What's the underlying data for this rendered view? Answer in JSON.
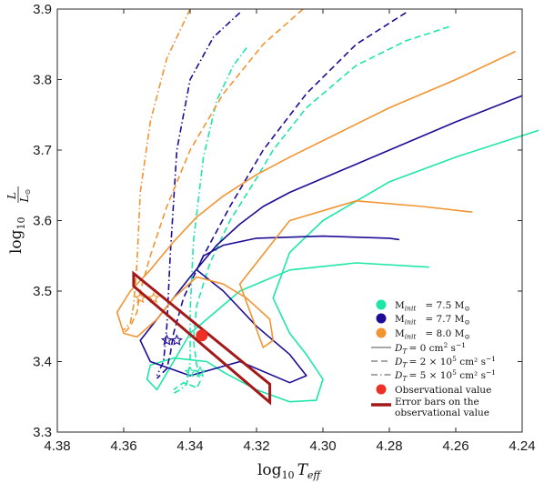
{
  "chart_data": {
    "type": "line",
    "xlabel_main": "log",
    "xlabel_sub": "10",
    "xlabel_var": "T",
    "xlabel_var_sub": "eff",
    "ylabel_main": "log",
    "ylabel_sub": "10",
    "ylabel_num": "L",
    "ylabel_den": "L",
    "ylabel_den_sub": "⊙",
    "xlim": [
      4.38,
      4.24
    ],
    "ylim": [
      3.3,
      3.9
    ],
    "x_reversed": true,
    "xticks": [
      "4.38",
      "4.36",
      "4.34",
      "4.32",
      "4.30",
      "4.28",
      "4.26",
      "4.24"
    ],
    "xtick_values": [
      4.38,
      4.36,
      4.34,
      4.32,
      4.3,
      4.28,
      4.26,
      4.24
    ],
    "yticks": [
      "3.3",
      "3.4",
      "3.5",
      "3.6",
      "3.7",
      "3.8",
      "3.9"
    ],
    "ytick_values": [
      3.3,
      3.4,
      3.5,
      3.6,
      3.7,
      3.8,
      3.9
    ],
    "grid": false,
    "legend_position": "bottom-right",
    "colors": {
      "m75": "#1ee6a8",
      "m77": "#1c0c96",
      "m80": "#f39432",
      "obs": "#ee2f23",
      "err": "#a31818"
    },
    "series": [
      {
        "mass": "7.5",
        "dt": "0",
        "style": "solid",
        "x": [
          4.235,
          4.26,
          4.28,
          4.3,
          4.31,
          4.315,
          4.31,
          4.305,
          4.3,
          4.302,
          4.31,
          4.32,
          4.33,
          4.335,
          4.345,
          4.352,
          4.353,
          4.35,
          4.34,
          4.325,
          4.31,
          4.29,
          4.268
        ],
        "y": [
          3.728,
          3.69,
          3.655,
          3.6,
          3.555,
          3.49,
          3.44,
          3.41,
          3.375,
          3.345,
          3.343,
          3.36,
          3.385,
          3.4,
          3.405,
          3.395,
          3.375,
          3.36,
          3.44,
          3.5,
          3.53,
          3.54,
          3.534
        ]
      },
      {
        "mass": "7.5",
        "dt": "2e5",
        "style": "dashed",
        "x": [
          4.262,
          4.275,
          4.29,
          4.305,
          4.315,
          4.32,
          4.328,
          4.334,
          4.338,
          4.339,
          4.338,
          4.337,
          4.338,
          4.339,
          4.342,
          4.345
        ],
        "y": [
          3.875,
          3.855,
          3.82,
          3.76,
          3.7,
          3.66,
          3.6,
          3.54,
          3.48,
          3.43,
          3.395,
          3.372,
          3.362,
          3.365,
          3.37,
          3.36
        ]
      },
      {
        "mass": "7.5",
        "dt": "5e5",
        "style": "dashdot",
        "x": [
          4.323,
          4.327,
          4.332,
          4.336,
          4.339,
          4.34,
          4.34,
          4.341,
          4.343,
          4.345
        ],
        "y": [
          3.845,
          3.82,
          3.77,
          3.69,
          3.57,
          3.47,
          3.4,
          3.368,
          3.36,
          3.355
        ]
      },
      {
        "mass": "7.7",
        "dt": "0",
        "style": "solid",
        "x": [
          4.24,
          4.26,
          4.28,
          4.3,
          4.31,
          4.318,
          4.325,
          4.332,
          4.34,
          4.35,
          4.355,
          4.352,
          4.34,
          4.325,
          4.31,
          4.305,
          4.31,
          4.32,
          4.33,
          4.338,
          4.336,
          4.33,
          4.32,
          4.3,
          4.28,
          4.277
        ],
        "y": [
          3.777,
          3.74,
          3.7,
          3.66,
          3.64,
          3.62,
          3.595,
          3.565,
          3.52,
          3.46,
          3.43,
          3.4,
          3.38,
          3.4,
          3.37,
          3.38,
          3.41,
          3.45,
          3.5,
          3.53,
          3.55,
          3.565,
          3.575,
          3.578,
          3.575,
          3.573
        ]
      },
      {
        "mass": "7.7",
        "dt": "2e5",
        "style": "dashed",
        "x": [
          4.275,
          4.29,
          4.305,
          4.318,
          4.328,
          4.336,
          4.342,
          4.345,
          4.346,
          4.347,
          4.35
        ],
        "y": [
          3.895,
          3.85,
          3.78,
          3.7,
          3.62,
          3.55,
          3.49,
          3.44,
          3.41,
          3.39,
          3.376
        ]
      },
      {
        "mass": "7.7",
        "dt": "5e5",
        "style": "dashdot",
        "x": [
          4.325,
          4.333,
          4.34,
          4.344,
          4.346,
          4.347,
          4.348,
          4.35
        ],
        "y": [
          3.895,
          3.86,
          3.8,
          3.7,
          3.55,
          3.45,
          3.4,
          3.38
        ]
      },
      {
        "mass": "8.0",
        "dt": "0",
        "style": "solid",
        "x": [
          4.242,
          4.26,
          4.28,
          4.295,
          4.31,
          4.32,
          4.33,
          4.338,
          4.345,
          4.352,
          4.358,
          4.362,
          4.36,
          4.356,
          4.35,
          4.345,
          4.338,
          4.33,
          4.323,
          4.316,
          4.315,
          4.318,
          4.325,
          4.31,
          4.29,
          4.27,
          4.255
        ],
        "y": [
          3.84,
          3.8,
          3.76,
          3.725,
          3.69,
          3.665,
          3.635,
          3.605,
          3.57,
          3.53,
          3.5,
          3.47,
          3.44,
          3.435,
          3.46,
          3.49,
          3.52,
          3.51,
          3.49,
          3.46,
          3.43,
          3.42,
          3.51,
          3.6,
          3.628,
          3.62,
          3.612
        ]
      },
      {
        "mass": "8.0",
        "dt": "2e5",
        "style": "dashed",
        "x": [
          4.306,
          4.318,
          4.33,
          4.34,
          4.347,
          4.352,
          4.355,
          4.356,
          4.358,
          4.36
        ],
        "y": [
          3.9,
          3.85,
          3.78,
          3.7,
          3.62,
          3.55,
          3.5,
          3.47,
          3.45,
          3.44
        ]
      },
      {
        "mass": "8.0",
        "dt": "5e5",
        "style": "dashdot",
        "x": [
          4.34,
          4.347,
          4.352,
          4.355,
          4.356,
          4.357,
          4.358,
          4.36
        ],
        "y": [
          3.9,
          3.83,
          3.74,
          3.64,
          3.54,
          3.48,
          3.455,
          3.445
        ]
      }
    ],
    "stars": [
      {
        "mass": "7.5",
        "points": [
          [
            4.337,
            3.385
          ],
          [
            4.34,
            3.385
          ]
        ]
      },
      {
        "mass": "7.7",
        "points": [
          [
            4.344,
            3.43
          ],
          [
            4.347,
            3.43
          ]
        ]
      },
      {
        "mass": "8.0",
        "points": [
          [
            4.351,
            3.49
          ],
          [
            4.355,
            3.49
          ]
        ]
      }
    ],
    "observation": {
      "x": 4.3365,
      "y": 3.437
    },
    "error_box": [
      [
        4.357,
        3.525
      ],
      [
        4.357,
        3.507
      ],
      [
        4.316,
        3.342
      ],
      [
        4.316,
        3.368
      ]
    ],
    "legend": [
      {
        "kind": "marker",
        "color_key": "m75",
        "prefix": "M",
        "sub": "init",
        "value": "= 7.5 M",
        "value_sub": "⊙"
      },
      {
        "kind": "marker",
        "color_key": "m77",
        "prefix": "M",
        "sub": "init",
        "value": "= 7.7 M",
        "value_sub": "⊙"
      },
      {
        "kind": "marker",
        "color_key": "m80",
        "prefix": "M",
        "sub": "init",
        "value": "= 8.0 M",
        "value_sub": "⊙"
      },
      {
        "kind": "line",
        "dash": "solid",
        "prefix": "D",
        "sub": "T",
        "value": "= 0 cm",
        "sup": "2",
        "tail": " s",
        "tail_sup": "−1"
      },
      {
        "kind": "line",
        "dash": "dashed",
        "prefix": "D",
        "sub": "T",
        "value": "= 2 × 10",
        "sup": "5",
        "tail": " cm² s",
        "tail_sup": "−1"
      },
      {
        "kind": "line",
        "dash": "dashdot",
        "prefix": "D",
        "sub": "T",
        "value": "= 5 × 10",
        "sup": "5",
        "tail": " cm² s",
        "tail_sup": "−1"
      },
      {
        "kind": "dot",
        "text": "Observational value"
      },
      {
        "kind": "bar",
        "text": "Error bars on the",
        "text2": "observational value"
      }
    ]
  }
}
